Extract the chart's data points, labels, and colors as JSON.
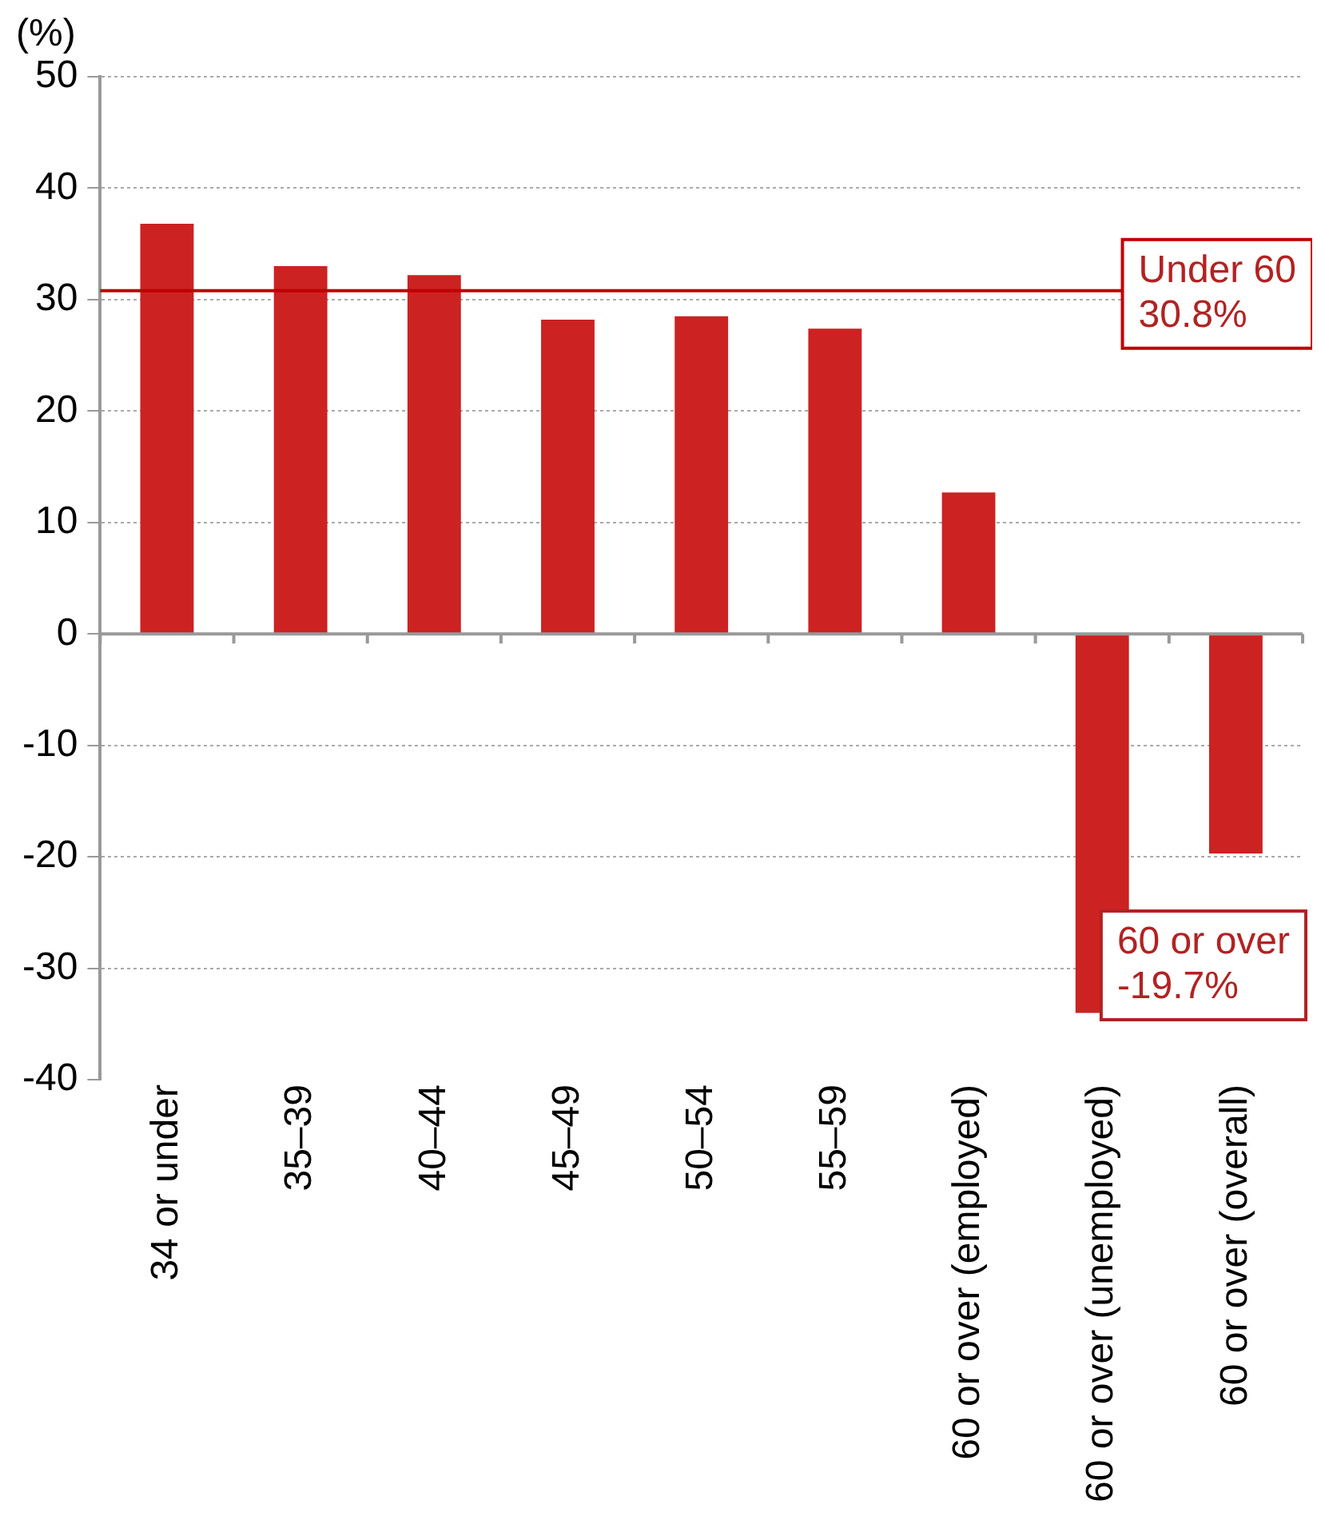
{
  "chart_data": {
    "type": "bar",
    "ylabel": "(%)",
    "categories": [
      "34 or under",
      "35–39",
      "40–44",
      "45–49",
      "50–54",
      "55–59",
      "60 or over (employed)",
      "60 or over (unemployed)",
      "60 or over (overall)"
    ],
    "values": [
      36.8,
      33.0,
      32.2,
      28.2,
      28.5,
      27.4,
      12.7,
      -34.0,
      -19.7
    ],
    "color": "#cc2222",
    "ylim": [
      -40,
      50
    ],
    "yticks": [
      -40,
      -30,
      -20,
      -10,
      0,
      10,
      20,
      30,
      40,
      50
    ],
    "grid": "y",
    "legend": false,
    "ref_lines": [
      {
        "axis": "y",
        "value": 30.8,
        "label": "Under 60\n30.8%",
        "color": "#c00000"
      }
    ],
    "annotations": [
      {
        "text": "60 or over\n-19.7%",
        "x": "60 or over (overall)",
        "y": -19.7
      }
    ]
  }
}
